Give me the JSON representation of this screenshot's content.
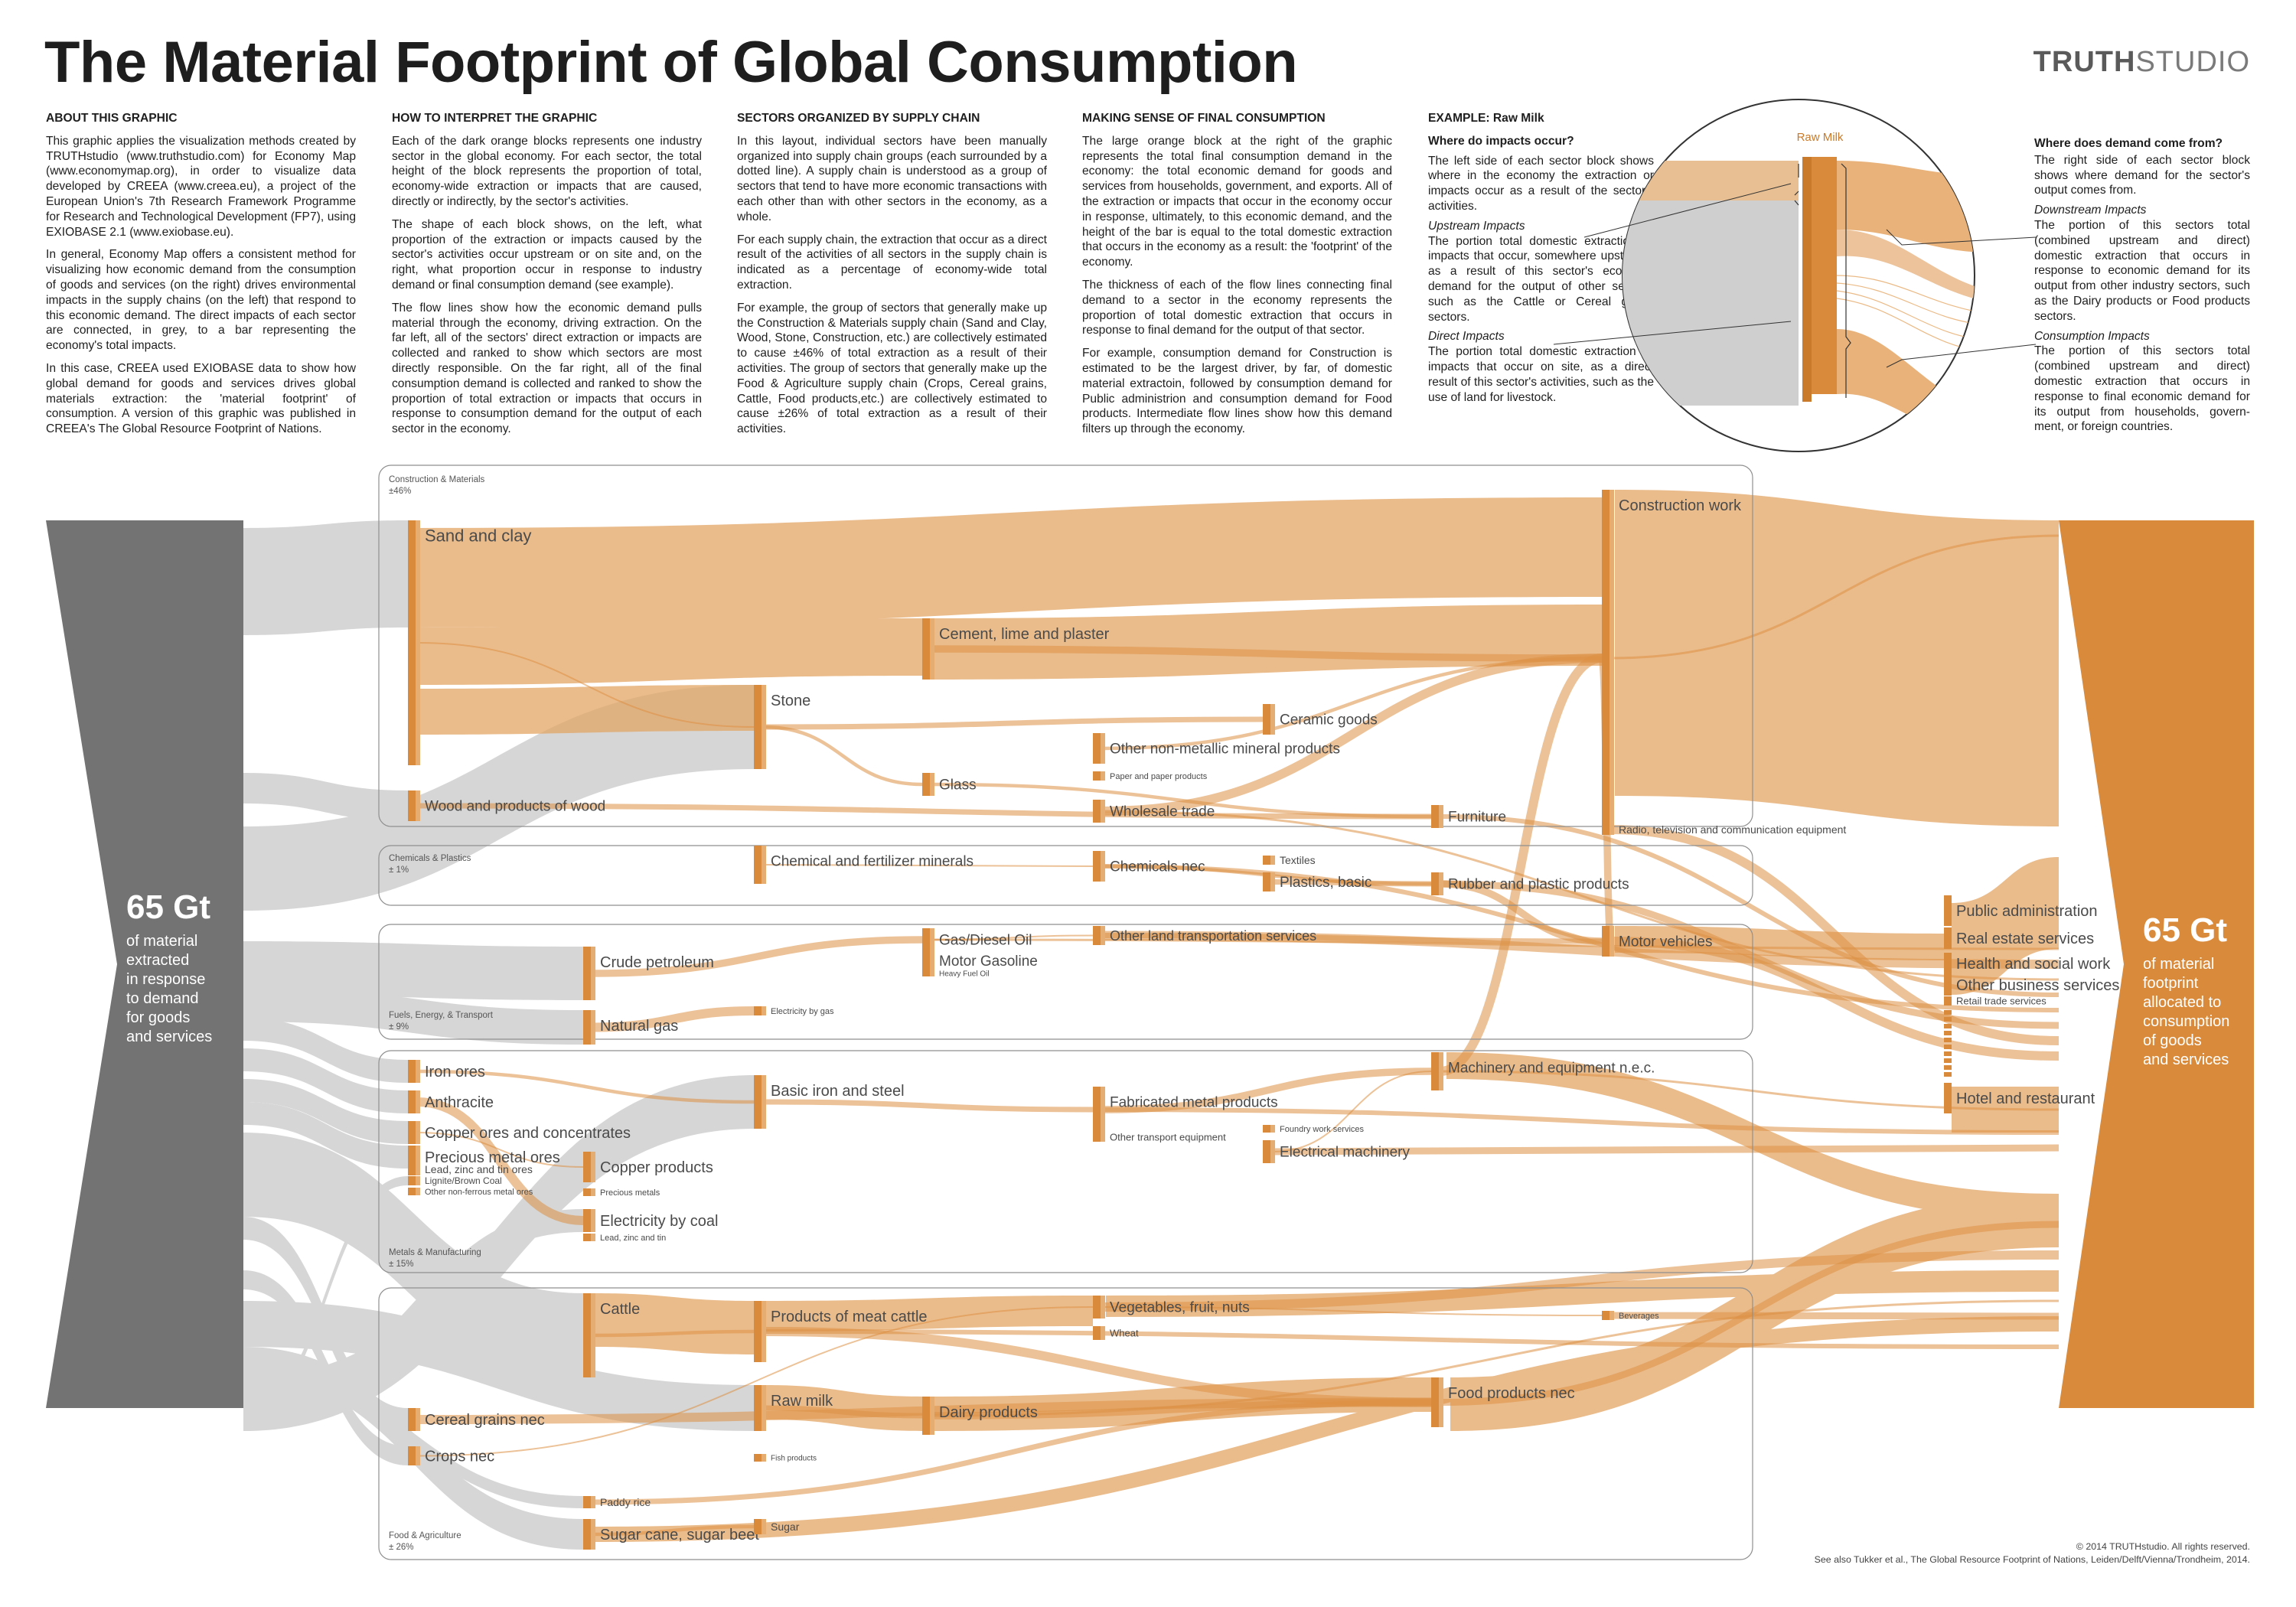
{
  "title": "The Material Footprint of Global Consumption",
  "brand": {
    "bold": "TRUTH",
    "light": "STUDIO"
  },
  "columns": [
    {
      "heading": "ABOUT THIS GRAPHIC",
      "paragraphs": [
        "This graphic applies the visualization methods created by TRUTHstudio (www.truthstudio.com) for Economy Map (www.economymap.org), in order to visualize data developed by CREEA (www.creea.eu), a project of the European Union's 7th Research Framework Programme for Research and Technological Development (FP7), using EXIOBASE 2.1 (www.exiobase.eu).",
        "In general, Economy Map offers a consistent method for visualizing how economic demand from the consumption of goods and services (on the right) drives environmental impacts in the supply chains (on the left) that respond to this economic demand. The direct impacts of each sector are connected, in grey, to a bar representing the economy's total impacts.",
        "In this case, CREEA used EXIOBASE data to show how global demand for goods and services drives global materials extraction: the 'material footprint' of consumption. A version of this graphic was published in CREEA's The Global Resource Footprint of Nations."
      ]
    },
    {
      "heading": "HOW TO INTERPRET THE GRAPHIC",
      "paragraphs": [
        "Each of the dark orange blocks represents one industry sector in the global economy. For each sector, the total height of the block represents the proportion of total, economy-wide extraction or impacts that are caused, directly or indirectly, by the sector's activities.",
        "The shape of each block shows, on the left, what proportion of the extraction or impacts caused by the sector's activities occur upstream or on site and, on the right, what proportion occur in response to industry demand or final consumption demand (see example).",
        "The flow lines show how the economic demand pulls material through the economy, driving extraction. On the far left, all of the sectors' direct extraction or impacts are collected and ranked to show which sectors are most directly responsible. On the far right, all of the final consumption demand is collected and ranked to show the proportion of total extraction or impacts that occurs in response to consumption demand for the output of each sector in the economy."
      ]
    },
    {
      "heading": "SECTORS ORGANIZED BY SUPPLY CHAIN",
      "paragraphs": [
        "In this layout, individual sectors have been manually organized into supply chain groups (each surrounded by a dotted line). A supply chain is understood as a group of sectors that tend to have more economic transactions with each other than with other sectors in the economy, as a whole.",
        "For each supply chain, the extraction that occur as a direct result of the activities of all sectors in the supply chain is indicated as a percentage of economy-wide total extraction.",
        "For example, the group of sectors that generally make up the Construction & Materials supply chain (Sand and Clay, Wood, Stone, Construction, etc.) are collectively estimated to cause ±46% of total extraction as a result of their activities. The group of sectors that generally make up the Food & Agriculture supply chain (Crops, Cereal grains, Cattle, Food products,etc.) are collectively estimated to cause ±26% of total extraction as a result of their activities."
      ]
    },
    {
      "heading": "MAKING SENSE OF FINAL CONSUMPTION",
      "paragraphs": [
        "The large orange block at the right of the graphic represents the total final consumption demand in the economy: the total economic demand for goods and services from households, government, and exports. All of the extraction or impacts that occur in the economy occur in response, ultimately, to this economic demand, and the height of the bar is equal to the total domestic extraction that occurs in the economy as a result: the 'footprint' of the economy.",
        "The thickness of each of the flow lines connecting final demand to a sector in the economy represents the proportion of total domestic extraction that occurs in response to final demand for the output of that sector.",
        "For example, consumption demand for Construction is estimated to be the largest driver, by far, of domestic material extractoin, followed by consumption demand for Public administrion and consumption demand for Food products. Intermediate flow lines show how this demand filters up through the economy."
      ]
    }
  ],
  "example": {
    "heading": "EXAMPLE: Raw Milk",
    "left_q": "Where do impacts occur?",
    "left_intro": "The left side of each sector block shows where in the economy the extraction or impacts occur as a result of the sector's activities.",
    "upstream_title": "Upstream Impacts",
    "upstream_text": "The portion total domestic extraction or impacts that occur, somewhere upstream, as a result of this sector's economic demand for the output of other sectors, such as the Cattle or Cereal grains sectors.",
    "direct_title": "Direct Impacts",
    "direct_text": "The portion total domestic extraction or impacts that occur on site, as a direct result of this sector's activities, such as the use of land for livestock.",
    "circle_label": "Raw Milk",
    "right_q": "Where does demand come from?",
    "right_intro": "The right side of each sector block shows where demand for the sector's output comes from.",
    "downstream_title": "Downstream Impacts",
    "downstream_text": "The portion of this sectors total (combined upstream and direct) domestic extraction that occurs in response to economic demand for its output from other industry sectors, such as the Dairy products or Food products sectors.",
    "consumption_title": "Consumption Impacts",
    "consumption_text": "The portion of this sectors total (combined upstream and direct) domestic extraction that occurs in response to final economic demand for its output from households, govern-ment, or foreign countries."
  },
  "left_total": {
    "value": "65 Gt",
    "lines": [
      "of material",
      "extracted",
      "in response",
      "to demand",
      "for goods",
      "and services"
    ]
  },
  "right_total": {
    "value": "65 Gt",
    "lines": [
      "of material",
      "footprint",
      "allocated to",
      "consumption",
      "of goods",
      "and services"
    ]
  },
  "groups": [
    {
      "name": "Construction & Materials",
      "share": "±46%"
    },
    {
      "name": "Chemicals & Plastics",
      "share": "± 1%"
    },
    {
      "name": "Fuels, Energy, & Transport",
      "share": "± 9%"
    },
    {
      "name": "Metals & Manufacturing",
      "share": "± 15%"
    },
    {
      "name": "Food & Agriculture",
      "share": "± 26%"
    }
  ],
  "sectors": {
    "sand_clay": "Sand and clay",
    "wood": "Wood and products of wood",
    "cement": "Cement, lime and plaster",
    "stone": "Stone",
    "glass": "Glass",
    "ceramic": "Ceramic goods",
    "nonmetallic": "Other non-metallic mineral products",
    "paper": "Paper and paper products",
    "wholesale": "Wholesale trade",
    "furniture": "Furniture",
    "construction": "Construction work",
    "radio": "Radio, television and communication equipment",
    "chem_fert": "Chemical and fertilizer minerals",
    "chem_nec": "Chemicals nec",
    "textiles": "Textiles",
    "plastics": "Plastics, basic",
    "rubber": "Rubber and plastic products",
    "crude": "Crude petroleum",
    "natgas": "Natural gas",
    "diesel": "Gas/Diesel Oil",
    "gasoline": "Motor Gasoline",
    "heavyfuel": "Heavy Fuel Oil",
    "elec_gas": "Electricity by gas",
    "land_transport": "Other land transportation services",
    "motor_vehicles": "Motor vehicles",
    "iron": "Iron ores",
    "anthracite": "Anthracite",
    "copper_ores": "Copper ores and concentrates",
    "precious_ores": "Precious metal ores",
    "lead_ores": "Lead, zinc and tin ores",
    "lignite": "Lignite/Brown Coal",
    "other_ores": "Other non-ferrous metal ores",
    "copper_prod": "Copper products",
    "precious_metals": "Precious metals",
    "elec_coal": "Electricity by coal",
    "lead_zinc": "Lead, zinc and tin",
    "basic_iron": "Basic iron and steel",
    "fabricated": "Fabricated metal products",
    "other_transport": "Other transport equipment",
    "foundry": "Foundry work services",
    "electrical": "Electrical machinery",
    "machinery": "Machinery and equipment n.e.c.",
    "cattle": "Cattle",
    "meat": "Products of meat cattle",
    "vegetables": "Vegetables, fruit, nuts",
    "wheat": "Wheat",
    "beverages": "Beverages",
    "cereal": "Cereal grains nec",
    "crops": "Crops nec",
    "raw_milk": "Raw milk",
    "dairy": "Dairy products",
    "food": "Food products nec",
    "fish": "Fish products",
    "paddy": "Paddy rice",
    "sugarcane": "Sugar cane, sugar beet",
    "sugar": "Sugar"
  },
  "consumers": [
    "Public administration",
    "Real estate services",
    "Health and social work",
    "Other business services",
    "Retail trade services",
    "Hotel and restaurant"
  ],
  "colors": {
    "grey": "#737373",
    "orange": "#d98a3a",
    "orange_light": "#e5ad72",
    "flow_grey": "#c9c9c9",
    "flow_orange": "#e09a52"
  },
  "footer": {
    "copyright": "© 2014 TRUTHstudio. All rights reserved.",
    "citation": "See also Tukker et al., The Global Resource Footprint of Nations, Leiden/Delft/Vienna/Trondheim, 2014."
  }
}
